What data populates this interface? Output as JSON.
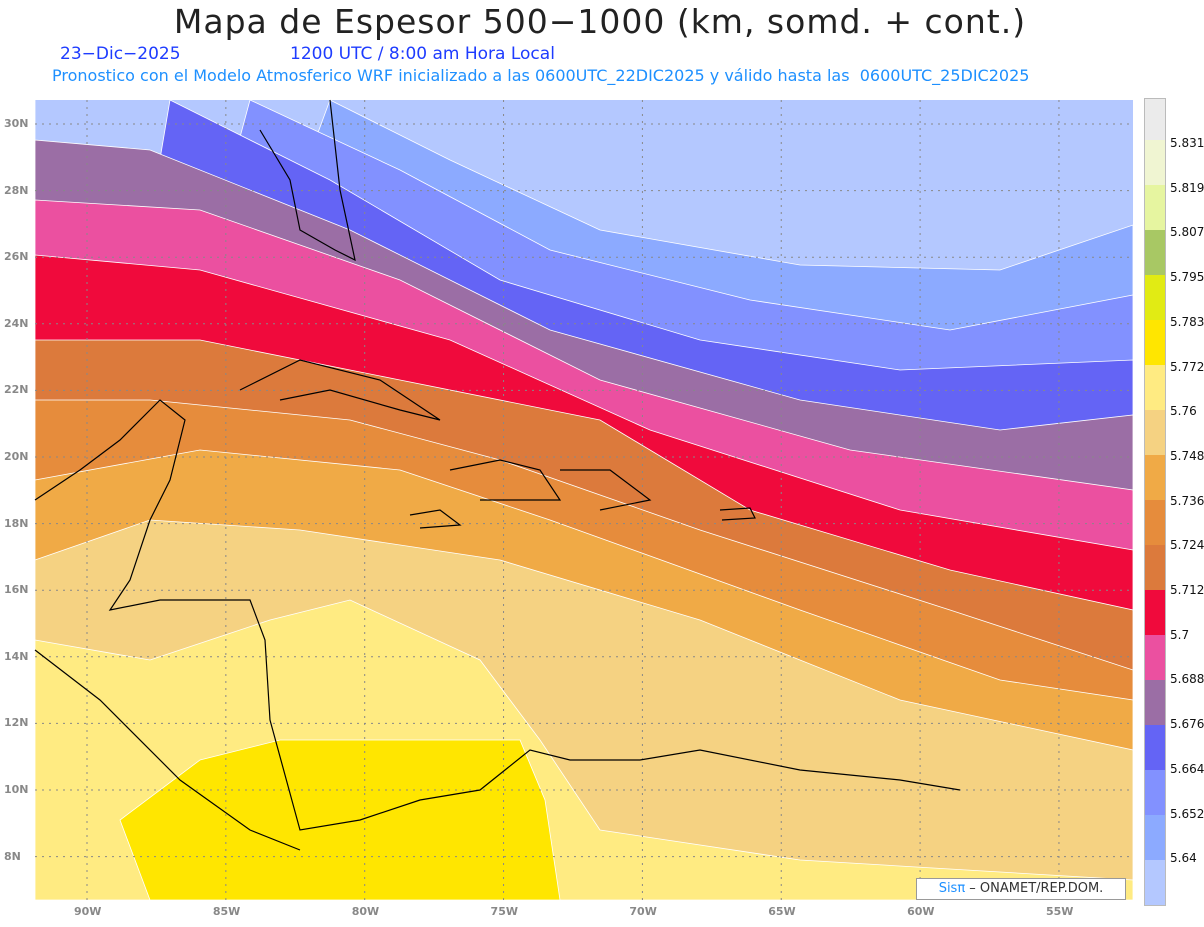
{
  "header": {
    "title": "Mapa de Espesor 500−1000 (km, somd. + cont.)",
    "date": "23−Dic−2025",
    "time": "1200 UTC / 8:00 am Hora Local",
    "subtitle": "Pronostico con el Modelo Atmosferico WRF inicializado a las 0600UTC_22DIC2025 y válido hasta las  0600UTC_25DIC2025"
  },
  "colorbar": {
    "labels": [
      "5.831",
      "5.819",
      "5.807",
      "5.795",
      "5.783",
      "5.772",
      "5.76",
      "5.748",
      "5.736",
      "5.724",
      "5.712",
      "5.7",
      "5.688",
      "5.676",
      "5.664",
      "5.652",
      "5.64"
    ],
    "colors": [
      "#ebebeb",
      "#f0f5d2",
      "#e6f5a0",
      "#a8c864",
      "#e1eb14",
      "#ffe600",
      "#ffeb82",
      "#f5d282",
      "#f0aa46",
      "#e68c3c",
      "#dc7a3c",
      "#f00a3c",
      "#eb50a0",
      "#9b6ea5",
      "#6464f5",
      "#8291ff",
      "#8caaff",
      "#b4c8ff"
    ]
  },
  "axes": {
    "lat_labels": [
      "30N",
      "28N",
      "26N",
      "24N",
      "22N",
      "20N",
      "18N",
      "16N",
      "14N",
      "12N",
      "10N",
      "8N"
    ],
    "lon_labels": [
      "90W",
      "85W",
      "80W",
      "75W",
      "70W",
      "65W",
      "60W",
      "55W"
    ]
  },
  "logo": {
    "brand": "Sisπ",
    "text": " –  ONAMET/REP.DOM."
  }
}
